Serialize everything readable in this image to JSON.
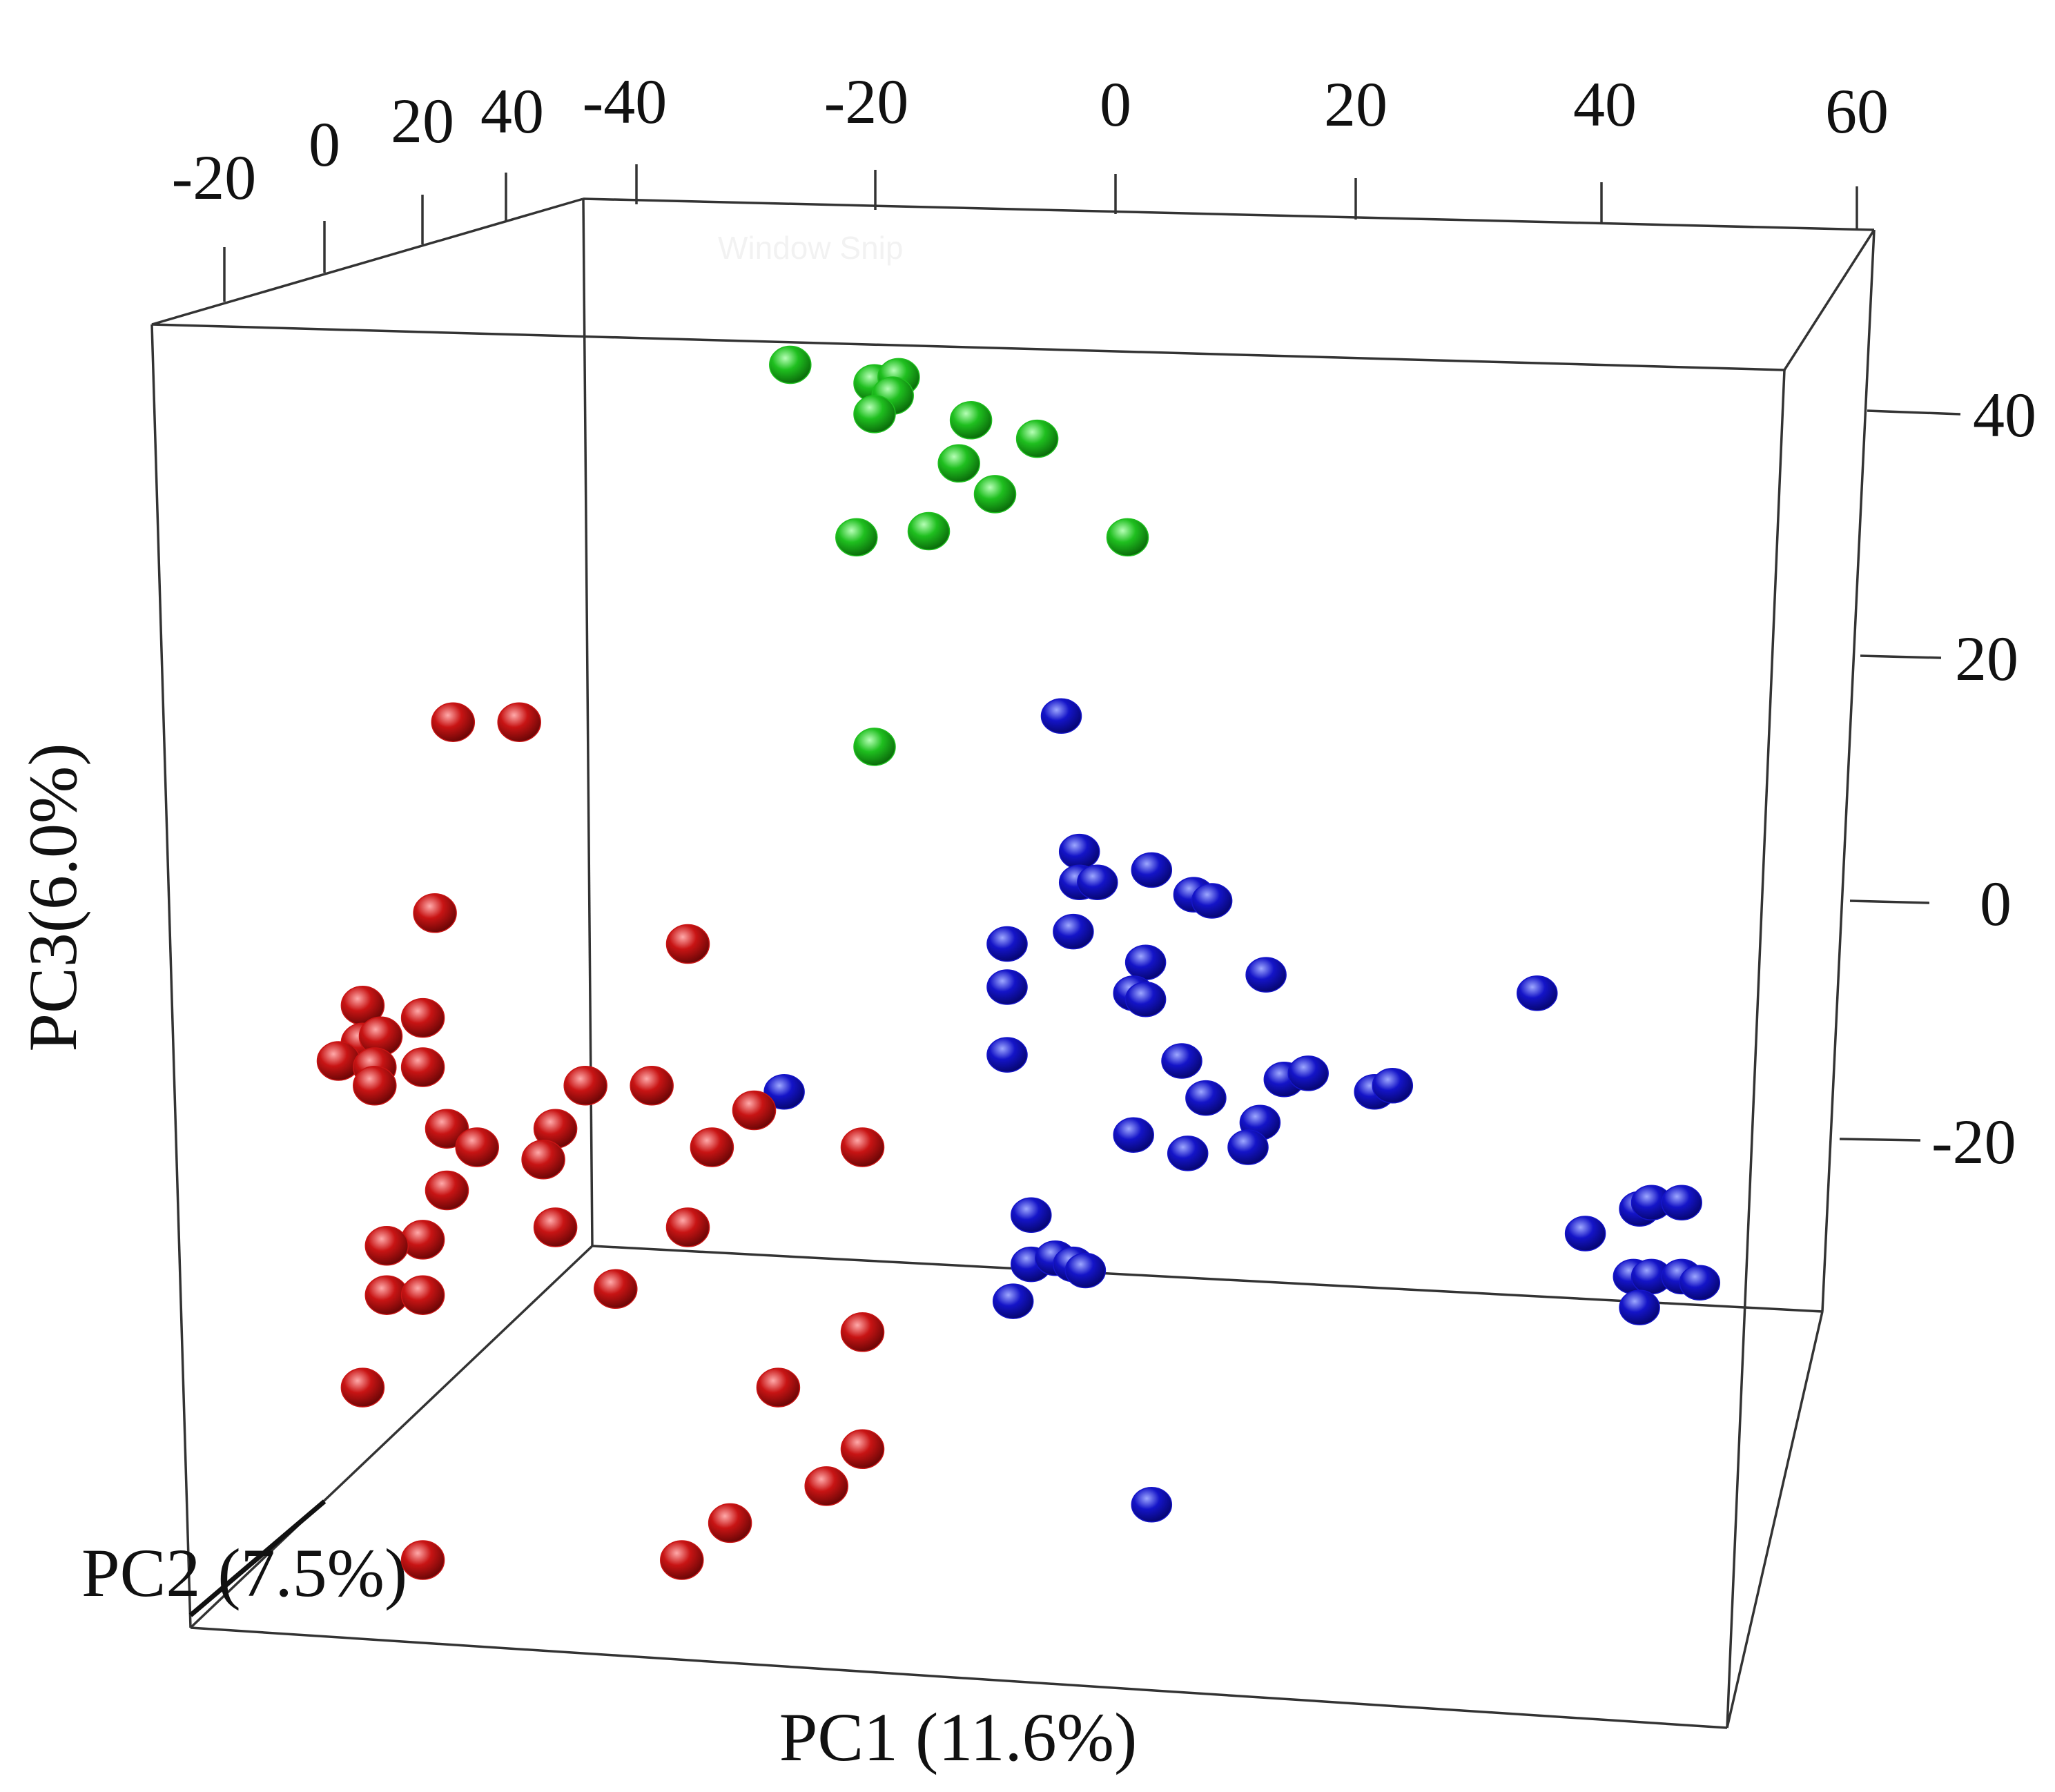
{
  "chart_data": {
    "type": "scatter",
    "projection": "3d",
    "xlabel": "PC1 (11.6%)",
    "ylabel": "PC2 (7.5%)",
    "zlabel": "PC3(6.0%)",
    "xticks": [
      "-40",
      "-20",
      "0",
      "20",
      "40",
      "60"
    ],
    "yticks": [
      "-20",
      "0",
      "20",
      "40"
    ],
    "zticks": [
      "40",
      "20",
      "0",
      "-20"
    ],
    "watermark": "Window Snip",
    "grid": false,
    "legend": "none",
    "colors": {
      "green": "#1fbf1f",
      "blue": "#1414c8",
      "red": "#c81414"
    },
    "series": [
      {
        "color": "green",
        "points": [
          [
            -27,
            43.5
          ],
          [
            -20,
            42
          ],
          [
            -18,
            42.5
          ],
          [
            -18.5,
            41
          ],
          [
            -20,
            39.5
          ],
          [
            -12,
            39
          ],
          [
            -6.5,
            37.5
          ],
          [
            -13,
            35.5
          ],
          [
            -10,
            33
          ],
          [
            -21.5,
            29.5
          ],
          [
            -15.5,
            30
          ],
          [
            1,
            29.5
          ],
          [
            -20,
            12.5
          ]
        ]
      },
      {
        "color": "blue",
        "points": [
          [
            -4.5,
            15
          ],
          [
            -3,
            4
          ],
          [
            -3,
            1.5
          ],
          [
            -1.5,
            1.5
          ],
          [
            3,
            2.5
          ],
          [
            6.5,
            0.5
          ],
          [
            8,
            0
          ],
          [
            -3.5,
            -2.5
          ],
          [
            -9,
            -3.5
          ],
          [
            2.5,
            -5
          ],
          [
            -9,
            -7
          ],
          [
            1.5,
            -7.5
          ],
          [
            2.5,
            -8
          ],
          [
            12.5,
            -6
          ],
          [
            35,
            -7.5
          ],
          [
            -9,
            -12.5
          ],
          [
            5.5,
            -13
          ],
          [
            14,
            -14.5
          ],
          [
            16,
            -14
          ],
          [
            21.5,
            -15.5
          ],
          [
            23,
            -15
          ],
          [
            7.5,
            -16
          ],
          [
            1.5,
            -19
          ],
          [
            12,
            -18
          ],
          [
            11,
            -20
          ],
          [
            6,
            -20.5
          ],
          [
            -7,
            -25.5
          ],
          [
            -7,
            -29.5
          ],
          [
            -5,
            -29
          ],
          [
            -3.5,
            -29.5
          ],
          [
            -2.5,
            -30
          ],
          [
            -8.5,
            -32.5
          ],
          [
            39,
            -27
          ],
          [
            43.5,
            -25
          ],
          [
            44.5,
            -24.5
          ],
          [
            47,
            -24.5
          ],
          [
            43,
            -30.5
          ],
          [
            44.5,
            -30.5
          ],
          [
            47,
            -30.5
          ],
          [
            48.5,
            -31
          ],
          [
            43.5,
            -33
          ],
          [
            -27.5,
            -15.5
          ],
          [
            3,
            -49
          ]
        ]
      },
      {
        "color": "red",
        "points": [
          [
            -55,
            14.5
          ],
          [
            -49.5,
            14.5
          ],
          [
            -56.5,
            -1
          ],
          [
            -35.5,
            -3.5
          ],
          [
            -62.5,
            -8.5
          ],
          [
            -57.5,
            -9.5
          ],
          [
            -62.5,
            -11.5
          ],
          [
            -61,
            -11
          ],
          [
            -64.5,
            -13
          ],
          [
            -61.5,
            -13.5
          ],
          [
            -57.5,
            -13.5
          ],
          [
            -61.5,
            -15
          ],
          [
            -44,
            -15
          ],
          [
            -38.5,
            -15
          ],
          [
            -55.5,
            -18.5
          ],
          [
            -46.5,
            -18.5
          ],
          [
            -53,
            -20
          ],
          [
            -47.5,
            -21
          ],
          [
            -30,
            -17
          ],
          [
            -33.5,
            -20
          ],
          [
            -21,
            -20
          ],
          [
            -55.5,
            -23.5
          ],
          [
            -46.5,
            -26.5
          ],
          [
            -35.5,
            -26.5
          ],
          [
            -57.5,
            -27.5
          ],
          [
            -60.5,
            -28
          ],
          [
            -41.5,
            -31.5
          ],
          [
            -60.5,
            -32
          ],
          [
            -57.5,
            -32
          ],
          [
            -21,
            -35
          ],
          [
            -62.5,
            -39.5
          ],
          [
            -28,
            -39.5
          ],
          [
            -21,
            -44.5
          ],
          [
            -24,
            -47.5
          ],
          [
            -32,
            -50.5
          ],
          [
            -36,
            -53.5
          ],
          [
            -57.5,
            -53.5
          ]
        ]
      }
    ]
  }
}
